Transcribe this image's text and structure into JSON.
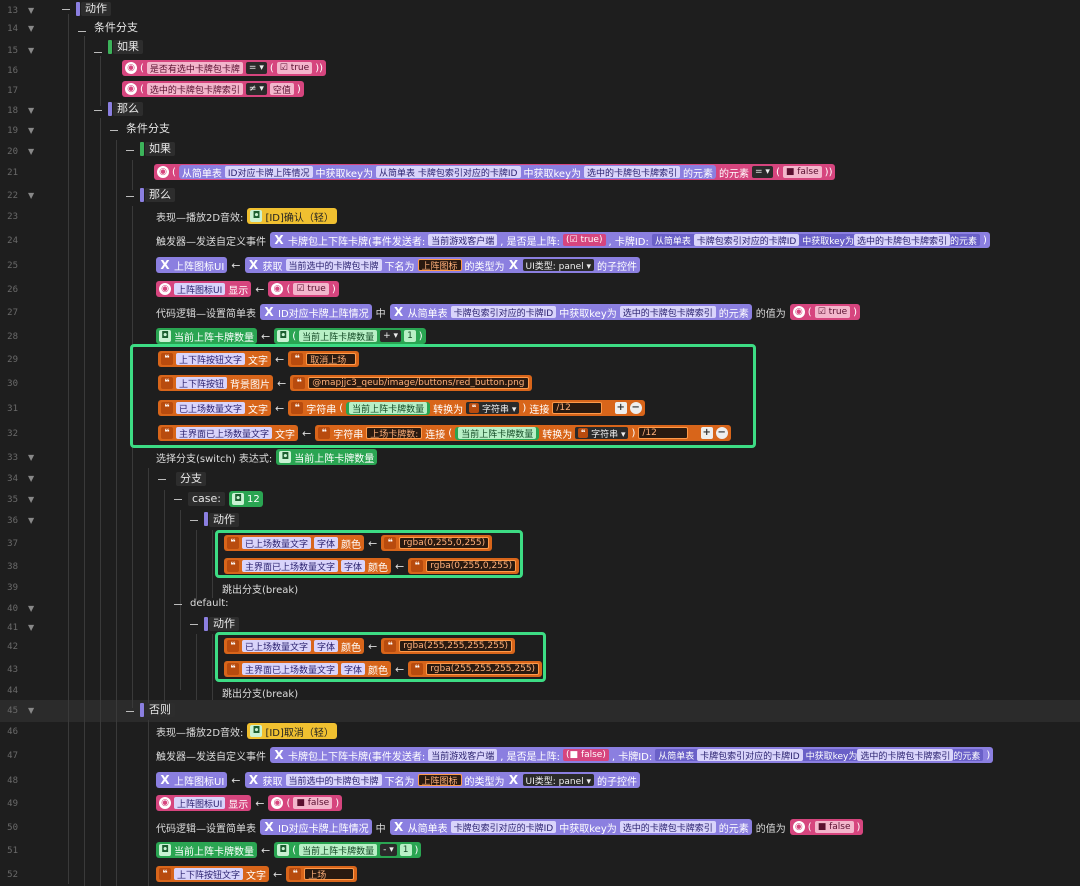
{
  "line_numbers": [
    "13",
    "14",
    "15",
    "16",
    "17",
    "18",
    "19",
    "20",
    "21",
    "22",
    "23",
    "24",
    "25",
    "26",
    "27",
    "28",
    "29",
    "30",
    "31",
    "32",
    "33",
    "34",
    "35",
    "36",
    "37",
    "38",
    "39",
    "40",
    "41",
    "42",
    "43",
    "44",
    "45",
    "46",
    "47",
    "48",
    "49",
    "50",
    "51",
    "52"
  ],
  "labels": {
    "action": "动作",
    "cond_branch": "条件分支",
    "if": "如果",
    "then": "那么",
    "else": "否则",
    "switch": "选择分支(switch) 表达式:",
    "branch": "分支",
    "case": "case:",
    "default": "default:",
    "break": "跳出分支(break)",
    "play2d": "表现—播放2D音效:",
    "trigger": "触发器—发送自定义事件",
    "codelogic": "代码逻辑—设置简单表",
    "arrow": "←",
    "get": "获取",
    "next_named": "下名为",
    "type_is": "的类型为",
    "child": "的子控件",
    "in": "中",
    "get_key": "中获取key为",
    "elem": "的元素",
    "value_is": "的值为",
    "convert": "转换为",
    "concat": "连接",
    "from_table": "从简单表",
    "text": "文字",
    "font": "字体",
    "color": "颜色",
    "bg": "背景图片",
    "show": "显示"
  },
  "l16": {
    "a": "是否有选中卡牌包卡牌",
    "op": "= ▾",
    "v": "true"
  },
  "l17": {
    "a": "选中的卡牌包卡牌索引",
    "op": "≠ ▾",
    "v": "空值"
  },
  "l21": {
    "a": "从简单表",
    "b": "ID对应卡牌上阵情况",
    "c": "中获取key为",
    "d": "从简单表",
    "e": "卡牌包索引对应的卡牌ID",
    "f": "中获取key为",
    "g": "选中的卡牌包卡牌索引",
    "h": "的元素",
    "i": "的元素",
    "op": "= ▾",
    "v": "false"
  },
  "l23": {
    "sound": "[ID]确认（轻）"
  },
  "l24": {
    "evt": "卡牌包上下阵卡牌(事件发送者:",
    "sender": "当前游戏客户端",
    "p1": ", 是否是上阵:",
    "v": "true",
    "p2": ", 卡牌ID:",
    "a": "从简单表",
    "b": "卡牌包索引对应的卡牌ID",
    "c": "中获取key为",
    "d": "选中的卡牌包卡牌索引",
    "e": "的元素"
  },
  "l25": {
    "ui": "上阵图标UI",
    "a": "当前选中的卡牌包卡牌",
    "name": "上阵图标",
    "t": "UI类型: panel ▾"
  },
  "l26": {
    "ui": "上阵图标UI",
    "v": "true"
  },
  "l27": {
    "tbl": "ID对应卡牌上阵情况",
    "a": "卡牌包索引对应的卡牌ID",
    "b": "选中的卡牌包卡牌索引",
    "v": "true"
  },
  "l28": {
    "var": "当前上阵卡牌数量",
    "a": "当前上阵卡牌数量",
    "op": "+ ▾",
    "n": "1"
  },
  "l29": {
    "w": "上下阵按钮文字",
    "v": "取消上场"
  },
  "l30": {
    "w": "上下阵按钮",
    "v": "@mapjjc3_qeub/image/buttons/red_button.png"
  },
  "l31": {
    "w": "已上场数量文字",
    "fn": "字符串",
    "a": "当前上阵卡牌数量",
    "t": "字符串 ▾",
    "v": "/12"
  },
  "l32": {
    "w": "主界面已上场数量文字",
    "fn": "字符串",
    "a": "上场卡牌数:",
    "b": "当前上阵卡牌数量",
    "t": "字符串 ▾",
    "v": "/12"
  },
  "l33": {
    "var": "当前上阵卡牌数量"
  },
  "l35": {
    "n": "12"
  },
  "l37": {
    "w": "已上场数量文字",
    "v": "rgba(0,255,0,255)"
  },
  "l38": {
    "w": "主界面已上场数量文字",
    "v": "rgba(0,255,0,255)"
  },
  "l42": {
    "w": "已上场数量文字",
    "v": "rgba(255,255,255,255)"
  },
  "l43": {
    "w": "主界面已上场数量文字",
    "v": "rgba(255,255,255,255)"
  },
  "l46": {
    "sound": "[ID]取消（轻）"
  },
  "l47": {
    "evt": "卡牌包上下阵卡牌(事件发送者:",
    "sender": "当前游戏客户端",
    "p1": ", 是否是上阵:",
    "v": "false",
    "p2": ", 卡牌ID:",
    "a": "从简单表",
    "b": "卡牌包索引对应的卡牌ID",
    "c": "中获取key为",
    "d": "选中的卡牌包卡牌索引",
    "e": "的元素"
  },
  "l48": {
    "ui": "上阵图标UI",
    "a": "当前选中的卡牌包卡牌",
    "name": "上阵图标",
    "t": "UI类型: panel ▾"
  },
  "l49": {
    "ui": "上阵图标UI",
    "v": "false"
  },
  "l50": {
    "tbl": "ID对应卡牌上阵情况",
    "a": "卡牌包索引对应的卡牌ID",
    "b": "选中的卡牌包卡牌索引",
    "v": "false"
  },
  "l51": {
    "var": "当前上阵卡牌数量",
    "a": "当前上阵卡牌数量",
    "op": "- ▾",
    "n": "1"
  },
  "l52": {
    "w": "上下阵按钮文字",
    "v": "上场"
  },
  "colors": {
    "bg": "#1e1e1e",
    "pink": "#d6457e",
    "purple": "#8b7fe0",
    "orange": "#d8651a",
    "green": "#2aa552",
    "yellow": "#f0c030",
    "selection": "#3ddc84"
  }
}
